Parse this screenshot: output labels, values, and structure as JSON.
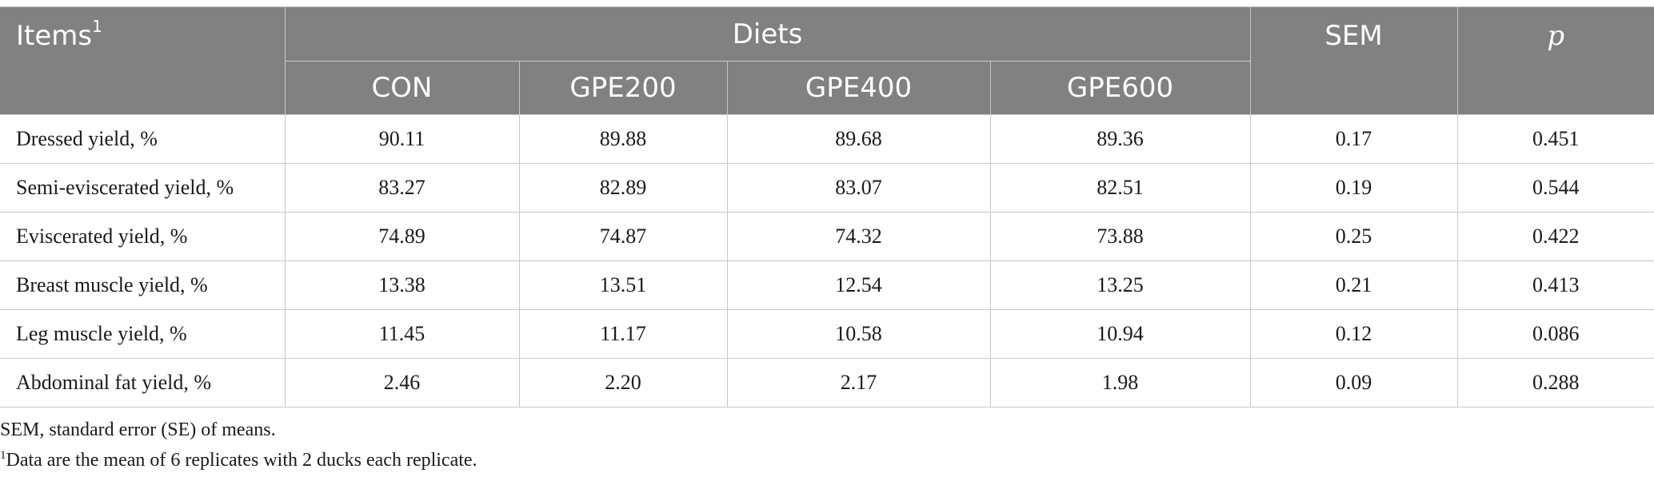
{
  "header": {
    "items_label": "Items",
    "items_footnote_mark": "1",
    "diets_label": "Diets",
    "sem_label": "SEM",
    "p_label": "p",
    "diet_columns": [
      "CON",
      "GPE200",
      "GPE400",
      "GPE600"
    ]
  },
  "rows": [
    {
      "item": "Dressed yield, %",
      "values": [
        "90.11",
        "89.88",
        "89.68",
        "89.36"
      ],
      "sem": "0.17",
      "p": "0.451"
    },
    {
      "item": "Semi-eviscerated yield, %",
      "values": [
        "83.27",
        "82.89",
        "83.07",
        "82.51"
      ],
      "sem": "0.19",
      "p": "0.544"
    },
    {
      "item": "Eviscerated yield, %",
      "values": [
        "74.89",
        "74.87",
        "74.32",
        "73.88"
      ],
      "sem": "0.25",
      "p": "0.422"
    },
    {
      "item": "Breast muscle yield, %",
      "values": [
        "13.38",
        "13.51",
        "12.54",
        "13.25"
      ],
      "sem": "0.21",
      "p": "0.413"
    },
    {
      "item": "Leg muscle yield, %",
      "values": [
        "11.45",
        "11.17",
        "10.58",
        "10.94"
      ],
      "sem": "0.12",
      "p": "0.086"
    },
    {
      "item": "Abdominal fat yield, %",
      "values": [
        "2.46",
        "2.20",
        "2.17",
        "1.98"
      ],
      "sem": "0.09",
      "p": "0.288"
    }
  ],
  "notes": {
    "sem_note": "SEM, standard error (SE) of means.",
    "footnote_mark": "1",
    "footnote_text": "Data are the mean of 6 replicates with 2 ducks each replicate."
  }
}
